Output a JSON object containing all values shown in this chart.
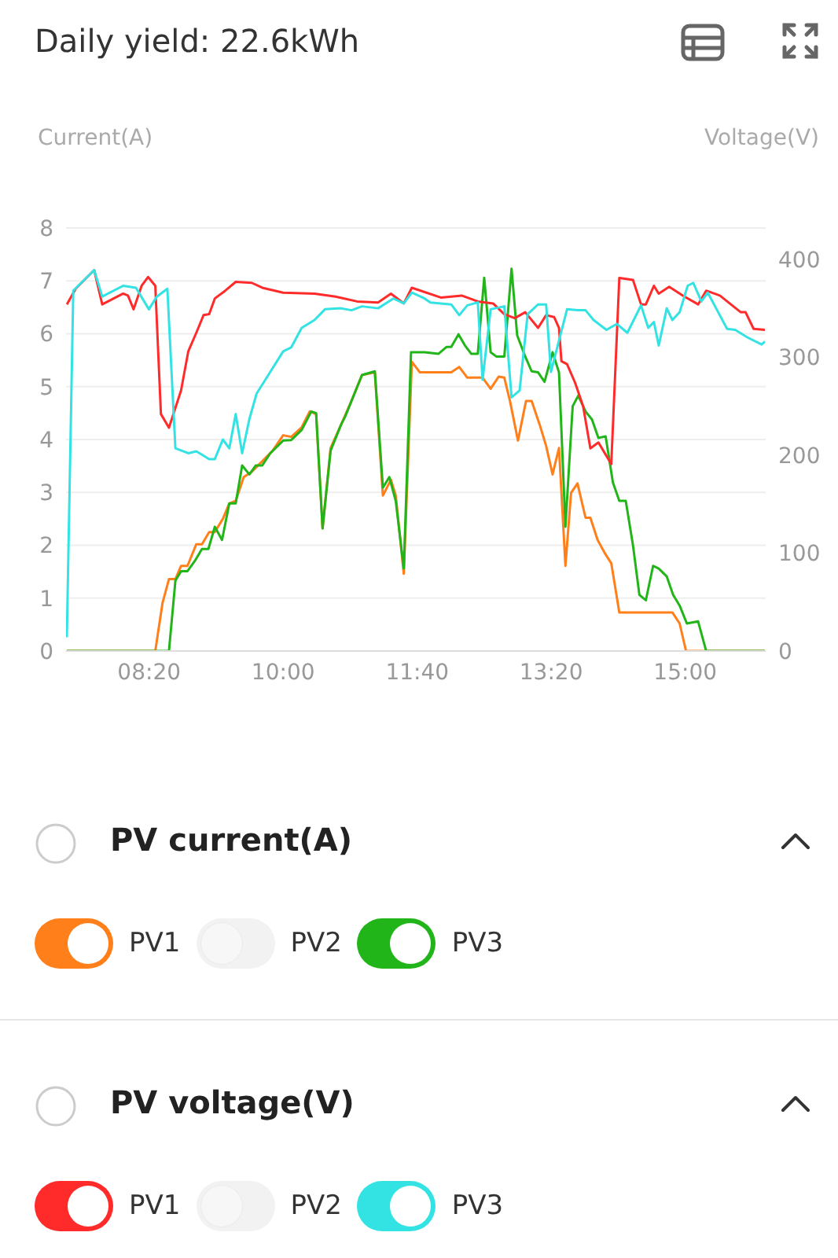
{
  "chart_data": {
    "type": "line",
    "title": "Daily yield: 22.6kWh",
    "ylabel": "Current(A)",
    "y2label": "Voltage(V)",
    "annotations": [
      "PV current(A)",
      "PV voltage(V)"
    ],
    "xlim": [
      7.3,
      16.0
    ],
    "xticks": [
      {
        "value": 8.333,
        "label": "08:20"
      },
      {
        "value": 10.0,
        "label": "10:00"
      },
      {
        "value": 11.667,
        "label": "11:40"
      },
      {
        "value": 13.333,
        "label": "13:20"
      },
      {
        "value": 15.0,
        "label": "15:00"
      }
    ],
    "ylim": [
      0,
      8
    ],
    "yticks": [
      0,
      1,
      2,
      3,
      4,
      5,
      6,
      7,
      8
    ],
    "y2lim": [
      0,
      432
    ],
    "y2ticks": [
      0,
      100,
      200,
      300,
      400
    ],
    "grid": "y",
    "legend": "bottom",
    "series": [
      {
        "name": "PV1",
        "color": "#ff7f1a",
        "axis": "y",
        "x": [
          7.31,
          8.41,
          8.5,
          8.58,
          8.66,
          8.73,
          8.81,
          8.92,
          8.99,
          9.08,
          9.15,
          9.25,
          9.33,
          9.41,
          9.51,
          9.61,
          9.74,
          9.87,
          10.0,
          10.1,
          10.23,
          10.33,
          10.41,
          10.49,
          10.59,
          10.72,
          10.85,
          10.98,
          11.14,
          11.24,
          11.34,
          11.4,
          11.5,
          11.6,
          11.7,
          12.09,
          12.19,
          12.29,
          12.48,
          12.58,
          12.68,
          12.75,
          12.82,
          12.92,
          13.02,
          13.09,
          13.19,
          13.27,
          13.35,
          13.43,
          13.51,
          13.58,
          13.66,
          13.76,
          13.82,
          13.91,
          14.0,
          14.08,
          14.18,
          14.84,
          14.93,
          15.01,
          15.99
        ],
        "values": [
          0,
          0,
          0.91,
          1.36,
          1.36,
          1.61,
          1.61,
          2.02,
          2.02,
          2.25,
          2.25,
          2.5,
          2.79,
          2.84,
          3.29,
          3.39,
          3.59,
          3.79,
          4.08,
          4.05,
          4.23,
          4.53,
          4.48,
          2.32,
          3.84,
          4.28,
          4.73,
          5.22,
          5.27,
          2.94,
          3.24,
          2.94,
          1.46,
          5.47,
          5.27,
          5.27,
          5.37,
          5.17,
          5.17,
          4.96,
          5.19,
          5.17,
          4.73,
          3.98,
          4.73,
          4.73,
          4.28,
          3.88,
          3.34,
          3.84,
          1.61,
          2.99,
          3.17,
          2.52,
          2.52,
          2.1,
          1.85,
          1.66,
          0.73,
          0.73,
          0.52,
          0,
          0
        ]
      },
      {
        "name": "PV2",
        "color": "#f2f2f2",
        "axis": "y"
      },
      {
        "name": "PV3",
        "color": "#22b51a",
        "axis": "y",
        "x": [
          7.31,
          8.58,
          8.66,
          8.73,
          8.81,
          8.9,
          8.99,
          9.07,
          9.15,
          9.24,
          9.33,
          9.41,
          9.49,
          9.58,
          9.66,
          9.74,
          9.84,
          10.0,
          10.1,
          10.23,
          10.35,
          10.41,
          10.49,
          10.59,
          10.72,
          10.77,
          10.85,
          10.98,
          11.14,
          11.24,
          11.32,
          11.4,
          11.5,
          11.59,
          11.76,
          11.93,
          12.03,
          12.09,
          12.18,
          12.26,
          12.34,
          12.42,
          12.5,
          12.58,
          12.65,
          12.75,
          12.84,
          12.91,
          13.01,
          13.09,
          13.17,
          13.25,
          13.35,
          13.43,
          13.51,
          13.6,
          13.67,
          13.76,
          13.84,
          13.92,
          14.01,
          14.1,
          14.18,
          14.26,
          14.35,
          14.43,
          14.51,
          14.6,
          14.67,
          14.77,
          14.85,
          14.93,
          15.02,
          15.16,
          15.26,
          15.99
        ],
        "values": [
          0,
          0,
          1.33,
          1.51,
          1.51,
          1.7,
          1.93,
          1.93,
          2.35,
          2.1,
          2.79,
          2.79,
          3.51,
          3.34,
          3.51,
          3.51,
          3.74,
          3.98,
          3.99,
          4.18,
          4.53,
          4.5,
          2.32,
          3.79,
          4.28,
          4.43,
          4.73,
          5.22,
          5.29,
          3.09,
          3.29,
          2.84,
          1.56,
          5.65,
          5.65,
          5.62,
          5.75,
          5.75,
          5.99,
          5.78,
          5.62,
          5.62,
          7.06,
          5.65,
          5.57,
          5.57,
          7.23,
          5.97,
          5.57,
          5.29,
          5.27,
          5.09,
          5.65,
          5.27,
          2.35,
          4.63,
          4.83,
          4.53,
          4.38,
          4.03,
          4.06,
          3.19,
          2.84,
          2.84,
          2.0,
          1.06,
          0.96,
          1.61,
          1.56,
          1.41,
          1.06,
          0.86,
          0.52,
          0.56,
          0,
          0
        ]
      },
      {
        "name": "PV1",
        "color": "#ff2b2b",
        "axis": "y2",
        "x": [
          7.31,
          7.42,
          7.65,
          7.75,
          8.01,
          8.07,
          8.14,
          8.24,
          8.32,
          8.41,
          8.48,
          8.58,
          8.73,
          8.82,
          8.92,
          9.01,
          9.08,
          9.15,
          9.28,
          9.41,
          9.61,
          9.74,
          10.0,
          10.39,
          10.65,
          10.92,
          11.18,
          11.34,
          11.5,
          11.6,
          11.96,
          12.22,
          12.42,
          12.61,
          12.75,
          12.88,
          13.01,
          13.17,
          13.27,
          13.37,
          13.43,
          13.46,
          13.53,
          13.63,
          13.73,
          13.82,
          13.92,
          14.08,
          14.18,
          14.35,
          14.45,
          14.51,
          14.61,
          14.67,
          14.8,
          14.97,
          15.16,
          15.26,
          15.43,
          15.69,
          15.75,
          15.85,
          15.99
        ],
        "values": [
          354,
          370,
          389,
          354,
          365,
          363,
          349,
          373,
          382,
          373,
          242,
          228,
          266,
          306,
          325,
          343,
          344,
          360,
          368,
          377,
          376,
          371,
          366,
          365,
          362,
          357,
          356,
          365,
          355,
          371,
          361,
          363,
          357,
          355,
          344,
          340,
          346,
          330,
          343,
          341,
          330,
          296,
          293,
          274,
          250,
          207,
          213,
          191,
          381,
          379,
          354,
          354,
          373,
          365,
          372,
          363,
          354,
          368,
          363,
          346,
          346,
          329,
          328
        ]
      },
      {
        "name": "PV2",
        "color": "#f2f2f2",
        "axis": "y2"
      },
      {
        "name": "PV3",
        "color": "#33e3e3",
        "axis": "y2",
        "x": [
          7.31,
          7.39,
          7.65,
          7.75,
          8.01,
          8.17,
          8.33,
          8.43,
          8.56,
          8.66,
          8.82,
          8.92,
          9.08,
          9.15,
          9.25,
          9.33,
          9.41,
          9.49,
          9.58,
          9.67,
          9.84,
          10.0,
          10.1,
          10.23,
          10.39,
          10.52,
          10.72,
          10.85,
          10.98,
          11.18,
          11.37,
          11.5,
          11.6,
          11.76,
          11.83,
          12.09,
          12.19,
          12.29,
          12.42,
          12.48,
          12.58,
          12.75,
          12.84,
          12.94,
          13.04,
          13.17,
          13.27,
          13.33,
          13.43,
          13.53,
          13.66,
          13.76,
          13.86,
          14.02,
          14.15,
          14.28,
          14.45,
          14.54,
          14.61,
          14.67,
          14.77,
          14.84,
          14.93,
          15.03,
          15.1,
          15.2,
          15.28,
          15.39,
          15.52,
          15.62,
          15.78,
          15.95,
          15.99
        ],
        "values": [
          14,
          368,
          389,
          362,
          373,
          371,
          349,
          362,
          370,
          207,
          202,
          204,
          196,
          196,
          216,
          207,
          242,
          202,
          237,
          263,
          285,
          306,
          310,
          330,
          338,
          349,
          350,
          348,
          352,
          350,
          360,
          355,
          366,
          360,
          356,
          354,
          343,
          353,
          356,
          277,
          349,
          352,
          259,
          266,
          344,
          354,
          354,
          285,
          317,
          349,
          348,
          348,
          338,
          328,
          334,
          325,
          353,
          330,
          336,
          312,
          350,
          338,
          346,
          373,
          376,
          357,
          366,
          349,
          329,
          328,
          320,
          313,
          316
        ]
      }
    ]
  }
}
